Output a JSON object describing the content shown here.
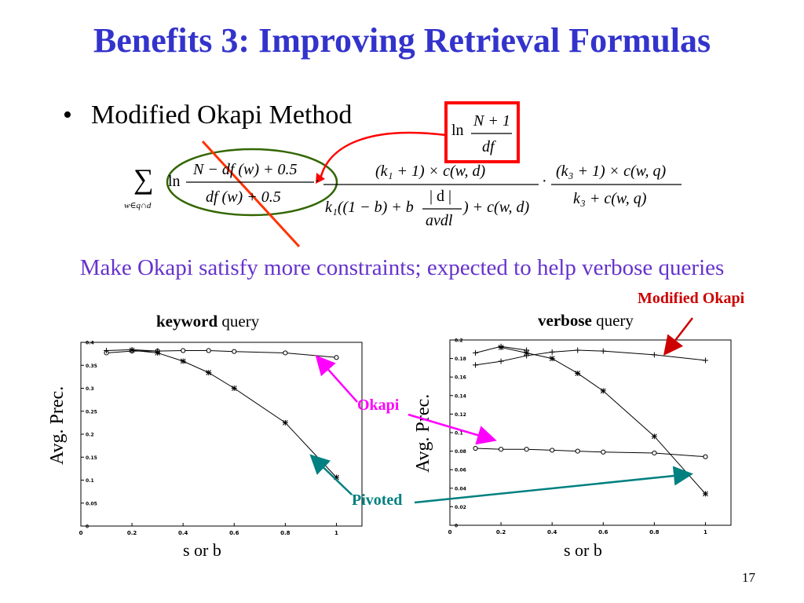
{
  "title": "Benefits 3: Improving Retrieval Formulas",
  "bullet": "Modified Okapi Method",
  "bullet_symbol": "•",
  "constraint_text": "Make Okapi satisfy more constraints; expected to help verbose queries",
  "slide_number": "17",
  "formula": {
    "sum_symbol": "∑",
    "sum_subscript": "w∈q∩d",
    "ln": "ln",
    "idf_num": "N − df (w) + 0.5",
    "idf_den": "df (w) + 0.5",
    "tf_num": "(k₁ + 1) × c(w, d)",
    "tf_den_left": "k₁((1 − b) + b",
    "tf_den_frac_num": "| d |",
    "tf_den_frac_den": "avdl",
    "tf_den_right": ") + c(w, d)",
    "qtf_num": "(k₃ + 1) × c(w, q)",
    "qtf_den": "k₃ + c(w, q)",
    "dot": "·",
    "replacement_num": "N + 1",
    "replacement_den": "df"
  },
  "annotations": {
    "modified_okapi": "Modified Okapi",
    "okapi": "Okapi",
    "pivoted": "Pivoted"
  },
  "colors": {
    "title": "#3333cc",
    "constraint": "#6633cc",
    "modified_okapi": "#cc0000",
    "okapi": "#ff00ff",
    "pivoted": "#008080",
    "red_box": "#ff0000",
    "green_ellipse": "#336600",
    "strike": "#ff3300"
  },
  "chart_data": [
    {
      "type": "line",
      "title_bold": "keyword",
      "title_rest": " query",
      "xlabel": "s or b",
      "ylabel": "Avg. Prec.",
      "xlim": [
        0,
        1.1
      ],
      "ylim": [
        0,
        0.4
      ],
      "xticks": [
        0,
        0.2,
        0.4,
        0.6,
        0.8,
        1
      ],
      "xtick_labels": [
        "0",
        "0.2",
        "0.4",
        "0.6",
        "0.8",
        "1"
      ],
      "yticks": [
        0,
        0.05,
        0.1,
        0.15,
        0.2,
        0.25,
        0.3,
        0.35,
        0.4
      ],
      "ytick_labels": [
        "0",
        "0.05",
        "0.1",
        "0.15",
        "0.2",
        "0.25",
        "0.3",
        "0.35",
        "0.4"
      ],
      "series": [
        {
          "marker": "circle",
          "x": [
            0.1,
            0.2,
            0.3,
            0.4,
            0.5,
            0.6,
            0.8,
            1.0
          ],
          "values": [
            0.377,
            0.381,
            0.381,
            0.382,
            0.382,
            0.38,
            0.377,
            0.367
          ]
        },
        {
          "marker": "plus",
          "x": [
            0.1,
            0.2,
            0.3
          ],
          "values": [
            0.382,
            0.384,
            0.381
          ]
        },
        {
          "marker": "star",
          "x": [
            0.2,
            0.3,
            0.4,
            0.5,
            0.6,
            0.8,
            1.0
          ],
          "values": [
            0.383,
            0.377,
            0.359,
            0.334,
            0.3,
            0.225,
            0.106
          ]
        }
      ]
    },
    {
      "type": "line",
      "title_bold": "verbose",
      "title_rest": " query",
      "xlabel": "s or b",
      "ylabel": "Avg. Prec.",
      "xlim": [
        0,
        1.1
      ],
      "ylim": [
        0,
        0.2
      ],
      "xticks": [
        0,
        0.2,
        0.4,
        0.6,
        0.8,
        1
      ],
      "xtick_labels": [
        "0",
        "0.2",
        "0.4",
        "0.6",
        "0.8",
        "1"
      ],
      "yticks": [
        0,
        0.02,
        0.04,
        0.06,
        0.08,
        0.1,
        0.12,
        0.14,
        0.16,
        0.18,
        0.2
      ],
      "ytick_labels": [
        "0",
        "0.02",
        "0.04",
        "0.06",
        "0.08",
        "0.1",
        "0.12",
        "0.14",
        "0.16",
        "0.18",
        "0.2"
      ],
      "series": [
        {
          "marker": "plus",
          "x": [
            0.1,
            0.2,
            0.3,
            0.4,
            0.5,
            0.6,
            0.8,
            1.0
          ],
          "values": [
            0.173,
            0.177,
            0.183,
            0.187,
            0.189,
            0.188,
            0.184,
            0.178
          ]
        },
        {
          "marker": "plus",
          "x": [
            0.1,
            0.2,
            0.3
          ],
          "values": [
            0.186,
            0.193,
            0.189
          ]
        },
        {
          "marker": "star",
          "x": [
            0.2,
            0.3,
            0.4,
            0.5,
            0.6,
            0.8,
            1.0
          ],
          "values": [
            0.192,
            0.186,
            0.18,
            0.164,
            0.145,
            0.096,
            0.034
          ]
        },
        {
          "marker": "circle",
          "x": [
            0.1,
            0.2,
            0.3,
            0.4,
            0.5,
            0.6,
            0.8,
            1.0
          ],
          "values": [
            0.083,
            0.082,
            0.082,
            0.081,
            0.08,
            0.079,
            0.078,
            0.074
          ]
        }
      ]
    }
  ]
}
